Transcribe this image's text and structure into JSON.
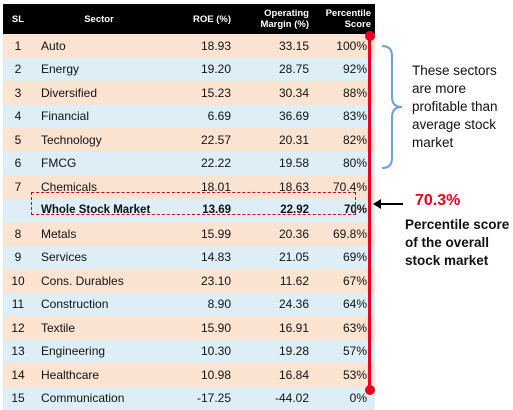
{
  "table": {
    "headers": {
      "sl": "SL",
      "sector": "Sector",
      "roe": "ROE (%)",
      "margin_line1": "Operating",
      "margin_line2": "Margin (%)",
      "pct_line1": "Percentile",
      "pct_line2": "Score"
    },
    "rows": [
      {
        "sl": "1",
        "sector": "Auto",
        "roe": "18.93",
        "margin": "33.15",
        "pct": "100%",
        "style": "peach"
      },
      {
        "sl": "2",
        "sector": "Energy",
        "roe": "19.20",
        "margin": "28.75",
        "pct": "92%",
        "style": "blue"
      },
      {
        "sl": "3",
        "sector": "Diversified",
        "roe": "15.23",
        "margin": "30.34",
        "pct": "88%",
        "style": "peach"
      },
      {
        "sl": "4",
        "sector": "Financial",
        "roe": "6.69",
        "margin": "36.69",
        "pct": "83%",
        "style": "blue"
      },
      {
        "sl": "5",
        "sector": "Technology",
        "roe": "22.57",
        "margin": "20.31",
        "pct": "82%",
        "style": "peach"
      },
      {
        "sl": "6",
        "sector": "FMCG",
        "roe": "22.22",
        "margin": "19.58",
        "pct": "80%",
        "style": "blue"
      },
      {
        "sl": "7",
        "sector": "Chemicals",
        "roe": "18.01",
        "margin": "18.63",
        "pct": "70.4%",
        "style": "peach"
      },
      {
        "sl": "",
        "sector": "Whole Stock Market",
        "roe": "13.69",
        "margin": "22.92",
        "pct": "70%",
        "style": "blue",
        "whole": true
      },
      {
        "sl": "8",
        "sector": "Metals",
        "roe": "15.99",
        "margin": "20.36",
        "pct": "69.8%",
        "style": "peach"
      },
      {
        "sl": "9",
        "sector": "Services",
        "roe": "14.83",
        "margin": "21.05",
        "pct": "69%",
        "style": "blue"
      },
      {
        "sl": "10",
        "sector": "Cons. Durables",
        "roe": "23.10",
        "margin": "11.62",
        "pct": "67%",
        "style": "peach"
      },
      {
        "sl": "11",
        "sector": "Construction",
        "roe": "8.90",
        "margin": "24.36",
        "pct": "64%",
        "style": "blue"
      },
      {
        "sl": "12",
        "sector": "Textile",
        "roe": "15.90",
        "margin": "16.91",
        "pct": "63%",
        "style": "peach"
      },
      {
        "sl": "13",
        "sector": "Engineering",
        "roe": "10.30",
        "margin": "19.28",
        "pct": "57%",
        "style": "blue"
      },
      {
        "sl": "14",
        "sector": "Healthcare",
        "roe": "10.98",
        "margin": "16.84",
        "pct": "53%",
        "style": "peach"
      },
      {
        "sl": "15",
        "sector": "Communication",
        "roe": "-17.25",
        "margin": "-44.02",
        "pct": "0%",
        "style": "blue"
      }
    ]
  },
  "annotations": {
    "brace_text": "These sectors are more profitable than average stock market",
    "score_value": "70.3%",
    "score_caption": "Percentile score of the overall stock market"
  },
  "colors": {
    "header_bg": "#000000",
    "row_peach": "#fbe3d2",
    "row_blue": "#ddeef6",
    "accent_red": "#e8001c",
    "brace_blue": "#6f9fd8"
  }
}
